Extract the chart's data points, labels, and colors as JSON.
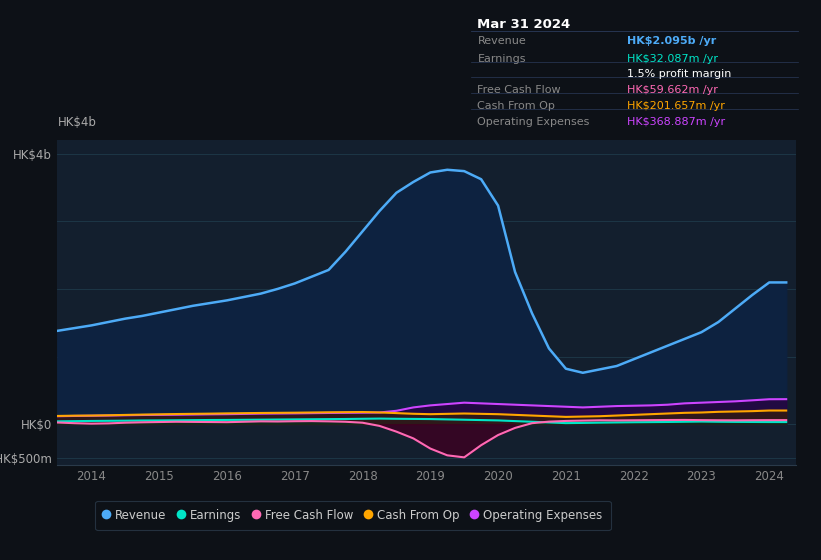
{
  "bg_color": "#0d1117",
  "plot_bg_color": "#131f2e",
  "grid_color": "#1e3a4a",
  "title_box": {
    "date": "Mar 31 2024",
    "rows": [
      {
        "label": "Revenue",
        "value": "HK$2.095b /yr",
        "value_color": "#4dabf7"
      },
      {
        "label": "Earnings",
        "value": "HK$32.087m /yr",
        "value_color": "#00e5c8"
      },
      {
        "label": "",
        "value": "1.5% profit margin",
        "value_color": "#ffffff"
      },
      {
        "label": "Free Cash Flow",
        "value": "HK$59.662m /yr",
        "value_color": "#ff69b4"
      },
      {
        "label": "Cash From Op",
        "value": "HK$201.657m /yr",
        "value_color": "#ffa500"
      },
      {
        "label": "Operating Expenses",
        "value": "HK$368.887m /yr",
        "value_color": "#cc44ff"
      }
    ]
  },
  "years": [
    2013.5,
    2013.75,
    2014.0,
    2014.25,
    2014.5,
    2014.75,
    2015.0,
    2015.25,
    2015.5,
    2015.75,
    2016.0,
    2016.25,
    2016.5,
    2016.75,
    2017.0,
    2017.25,
    2017.5,
    2017.75,
    2018.0,
    2018.25,
    2018.5,
    2018.75,
    2019.0,
    2019.25,
    2019.5,
    2019.75,
    2020.0,
    2020.25,
    2020.5,
    2020.75,
    2021.0,
    2021.25,
    2021.5,
    2021.75,
    2022.0,
    2022.25,
    2022.5,
    2022.75,
    2023.0,
    2023.25,
    2023.5,
    2023.75,
    2024.0,
    2024.25
  ],
  "revenue": [
    1380,
    1420,
    1460,
    1510,
    1560,
    1600,
    1650,
    1700,
    1750,
    1790,
    1830,
    1880,
    1930,
    2000,
    2080,
    2180,
    2280,
    2550,
    2850,
    3150,
    3420,
    3580,
    3720,
    3760,
    3740,
    3620,
    3230,
    2250,
    1640,
    1120,
    820,
    760,
    810,
    860,
    960,
    1060,
    1160,
    1260,
    1360,
    1510,
    1710,
    1910,
    2095,
    2095
  ],
  "earnings": [
    42,
    45,
    48,
    50,
    52,
    55,
    56,
    58,
    60,
    62,
    63,
    65,
    67,
    69,
    71,
    73,
    75,
    77,
    80,
    83,
    80,
    78,
    76,
    71,
    66,
    61,
    56,
    46,
    36,
    26,
    16,
    19,
    23,
    26,
    29,
    31,
    33,
    36,
    39,
    36,
    34,
    33,
    32,
    32
  ],
  "free_cash_flow": [
    25,
    15,
    8,
    12,
    22,
    28,
    32,
    36,
    34,
    32,
    30,
    36,
    42,
    40,
    44,
    46,
    42,
    36,
    22,
    -25,
    -110,
    -210,
    -360,
    -460,
    -490,
    -310,
    -160,
    -55,
    15,
    38,
    48,
    53,
    58,
    56,
    58,
    60,
    62,
    63,
    60,
    58,
    57,
    59,
    60,
    60
  ],
  "cash_from_op": [
    122,
    126,
    128,
    132,
    137,
    142,
    146,
    150,
    153,
    156,
    160,
    163,
    166,
    168,
    170,
    173,
    176,
    178,
    180,
    174,
    164,
    154,
    148,
    153,
    158,
    153,
    148,
    138,
    128,
    118,
    108,
    113,
    118,
    128,
    138,
    148,
    158,
    168,
    173,
    183,
    188,
    193,
    202,
    202
  ],
  "operating_expenses": [
    118,
    122,
    125,
    128,
    132,
    136,
    138,
    140,
    143,
    146,
    148,
    152,
    156,
    158,
    160,
    163,
    166,
    168,
    170,
    173,
    198,
    248,
    278,
    298,
    318,
    308,
    298,
    288,
    278,
    268,
    258,
    248,
    258,
    268,
    273,
    278,
    288,
    308,
    318,
    328,
    338,
    353,
    369,
    370
  ],
  "revenue_color": "#4dabf7",
  "earnings_color": "#00e5c8",
  "fcf_color": "#ff69b4",
  "cashop_color": "#ffa500",
  "opex_color": "#cc44ff",
  "ylim": [
    -600,
    4200
  ],
  "ylim_plot": [
    -600,
    4200
  ],
  "ytick_vals": [
    -500,
    0,
    4000
  ],
  "ytick_labels": [
    "-HK$500m",
    "HK$0",
    "HK$4b"
  ],
  "xtick_years": [
    2014,
    2015,
    2016,
    2017,
    2018,
    2019,
    2020,
    2021,
    2022,
    2023,
    2024
  ],
  "xmin": 2013.5,
  "xmax": 2024.4,
  "legend_items": [
    {
      "label": "Revenue",
      "color": "#4dabf7"
    },
    {
      "label": "Earnings",
      "color": "#00e5c8"
    },
    {
      "label": "Free Cash Flow",
      "color": "#ff69b4"
    },
    {
      "label": "Cash From Op",
      "color": "#ffa500"
    },
    {
      "label": "Operating Expenses",
      "color": "#cc44ff"
    }
  ]
}
